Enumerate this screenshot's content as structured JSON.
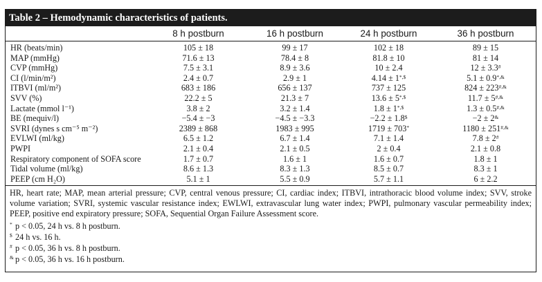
{
  "table": {
    "title": "Table 2 – Hemodynamic characteristics of patients.",
    "columns": [
      "",
      "8 h postburn",
      "16 h postburn",
      "24 h postburn",
      "36 h postburn"
    ],
    "rows": [
      {
        "label": "HR (beats/min)",
        "cells": [
          {
            "v": "105 ± 18",
            "s": ""
          },
          {
            "v": "99 ± 17",
            "s": ""
          },
          {
            "v": "102 ± 18",
            "s": ""
          },
          {
            "v": "89 ± 15",
            "s": ""
          }
        ]
      },
      {
        "label": "MAP (mmHg)",
        "cells": [
          {
            "v": "71.6 ± 13",
            "s": ""
          },
          {
            "v": "78.4 ± 8",
            "s": ""
          },
          {
            "v": "81.8 ± 10",
            "s": ""
          },
          {
            "v": "81 ± 14",
            "s": ""
          }
        ]
      },
      {
        "label": "CVP (mmHg)",
        "cells": [
          {
            "v": "7.5 ± 3.1",
            "s": ""
          },
          {
            "v": "8.9 ± 3.6",
            "s": ""
          },
          {
            "v": "10 ± 2.4",
            "s": ""
          },
          {
            "v": "12 ± 3.3",
            "s": "#"
          }
        ]
      },
      {
        "label": "CI (l/min/m²)",
        "cells": [
          {
            "v": "2.4 ± 0.7",
            "s": ""
          },
          {
            "v": "2.9 ± 1",
            "s": ""
          },
          {
            "v": "4.14 ± 1",
            "s": "*,$"
          },
          {
            "v": "5.1 ± 0.9",
            "s": "*,&"
          }
        ]
      },
      {
        "label": "ITBVI (ml/m²)",
        "cells": [
          {
            "v": "683 ± 186",
            "s": ""
          },
          {
            "v": "656 ± 137",
            "s": ""
          },
          {
            "v": "737 ± 125",
            "s": ""
          },
          {
            "v": "824 ± 223",
            "s": "#,&"
          }
        ]
      },
      {
        "label": "SVV (%)",
        "cells": [
          {
            "v": "22.2 ± 5",
            "s": ""
          },
          {
            "v": "21.3 ± 7",
            "s": ""
          },
          {
            "v": "13.6 ± 5",
            "s": "*,$"
          },
          {
            "v": "11.7 ± 5",
            "s": "#,&"
          }
        ]
      },
      {
        "label": "Lactate (mmol l⁻¹)",
        "cells": [
          {
            "v": "3.8 ± 2",
            "s": ""
          },
          {
            "v": "3.2 ± 1.4",
            "s": ""
          },
          {
            "v": "1.8 ± 1",
            "s": "*,$"
          },
          {
            "v": "1.3 ± 0.5",
            "s": "#,&"
          }
        ]
      },
      {
        "label": "BE (mequiv/l)",
        "cells": [
          {
            "v": "−5.4 ± −3",
            "s": ""
          },
          {
            "v": "−4.5 ± −3.3",
            "s": ""
          },
          {
            "v": "−2.2 ± 1.8",
            "s": "$"
          },
          {
            "v": "−2 ± 2",
            "s": "&"
          }
        ]
      },
      {
        "label": "SVRI (dynes s cm⁻⁵ m⁻²)",
        "cells": [
          {
            "v": "2389 ± 868",
            "s": ""
          },
          {
            "v": "1983 ± 995",
            "s": ""
          },
          {
            "v": "1719 ± 703",
            "s": "*"
          },
          {
            "v": "1180 ± 251",
            "s": "#,&"
          }
        ]
      },
      {
        "label": "EVLWI (ml/kg)",
        "cells": [
          {
            "v": "6.5 ± 1.2",
            "s": ""
          },
          {
            "v": "6.7 ± 1.4",
            "s": ""
          },
          {
            "v": "7.1 ± 1.4",
            "s": ""
          },
          {
            "v": "7.8 ± 2",
            "s": "#"
          }
        ]
      },
      {
        "label": "PWPI",
        "cells": [
          {
            "v": "2.1 ± 0.4",
            "s": ""
          },
          {
            "v": "2.1 ± 0.5",
            "s": ""
          },
          {
            "v": "2 ± 0.4",
            "s": ""
          },
          {
            "v": "2.1 ± 0.8",
            "s": ""
          }
        ]
      },
      {
        "label": "Respiratory component of SOFA score",
        "cells": [
          {
            "v": "1.7 ± 0.7",
            "s": ""
          },
          {
            "v": "1.6 ± 1",
            "s": ""
          },
          {
            "v": "1.6 ± 0.7",
            "s": ""
          },
          {
            "v": "1.8 ± 1",
            "s": ""
          }
        ]
      },
      {
        "label": "Tidal volume (ml/kg)",
        "cells": [
          {
            "v": "8.6 ± 1.3",
            "s": ""
          },
          {
            "v": "8.3 ± 1.3",
            "s": ""
          },
          {
            "v": "8.5 ± 0.7",
            "s": ""
          },
          {
            "v": "8.3 ± 1",
            "s": ""
          }
        ]
      },
      {
        "label": "PEEP (cm H₂O)",
        "cells": [
          {
            "v": "5.1 ± 1",
            "s": ""
          },
          {
            "v": "5.5 ± 0.9",
            "s": ""
          },
          {
            "v": "5.7 ± 1.1",
            "s": ""
          },
          {
            "v": "6 ± 2.2",
            "s": ""
          }
        ]
      }
    ]
  },
  "footer": {
    "abbreviations": "HR, heart rate; MAP, mean arterial pressure; CVP, central venous pressure; CI, cardiac index; ITBVI, intrathoracic blood volume index; SVV, stroke volume variation; SVRI, systemic vascular resistance index; EWLWI, extravascular lung water index; PWPI, pulmonary vascular permeability index; PEEP, positive end expiratory pressure; SOFA, Sequential Organ Failure Assessment score.",
    "notes": [
      {
        "symbol": "*",
        "text": "p < 0.05, 24 h vs. 8 h postburn."
      },
      {
        "symbol": "$",
        "text": "24 h vs. 16 h."
      },
      {
        "symbol": "#",
        "text": "p < 0.05, 36 h vs. 8 h postburn."
      },
      {
        "symbol": "&",
        "text": "p < 0.05, 36 h vs. 16 h postburn."
      }
    ]
  }
}
